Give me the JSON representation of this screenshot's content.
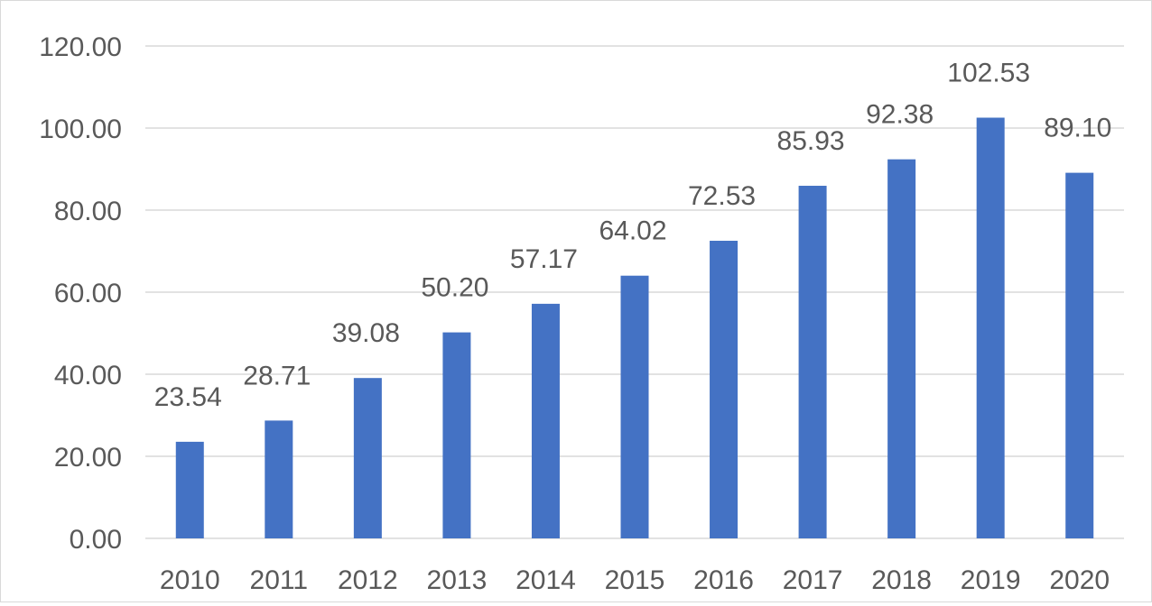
{
  "chart_data": {
    "type": "bar",
    "title": "",
    "xlabel": "",
    "ylabel": "",
    "categories": [
      "2010",
      "2011",
      "2012",
      "2013",
      "2014",
      "2015",
      "2016",
      "2017",
      "2018",
      "2019",
      "2020"
    ],
    "values": [
      23.54,
      28.71,
      39.08,
      50.2,
      57.17,
      64.02,
      72.53,
      85.93,
      92.38,
      102.53,
      89.1
    ],
    "data_labels": [
      "23.54",
      "28.71",
      "39.08",
      "50.20",
      "57.17",
      "64.02",
      "72.53",
      "85.93",
      "92.38",
      "102.53",
      "89.10"
    ],
    "ylim": [
      0,
      120
    ],
    "y_ticks": [
      "0.00",
      "20.00",
      "40.00",
      "60.00",
      "80.00",
      "100.00",
      "120.00"
    ],
    "grid": true,
    "legend": "none",
    "colors": {
      "bar": "#4472c4",
      "grid": "#d9d9d9",
      "text": "#595959"
    }
  }
}
